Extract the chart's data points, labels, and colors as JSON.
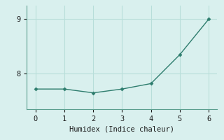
{
  "x": [
    0,
    1,
    2,
    3,
    4,
    5,
    6
  ],
  "y": [
    7.72,
    7.72,
    7.65,
    7.72,
    7.82,
    8.35,
    9.0
  ],
  "line_color": "#2e7d6e",
  "marker_color": "#2e7d6e",
  "bg_color": "#d9f0ee",
  "grid_color": "#b8deda",
  "spine_color": "#5a9e8e",
  "xlabel": "Humidex (Indice chaleur)",
  "xlabel_fontsize": 7.5,
  "tick_fontsize": 7.5,
  "yticks": [
    8,
    9
  ],
  "xticks": [
    0,
    1,
    2,
    3,
    4,
    5,
    6
  ],
  "ylim": [
    7.35,
    9.25
  ],
  "xlim": [
    -0.3,
    6.3
  ]
}
